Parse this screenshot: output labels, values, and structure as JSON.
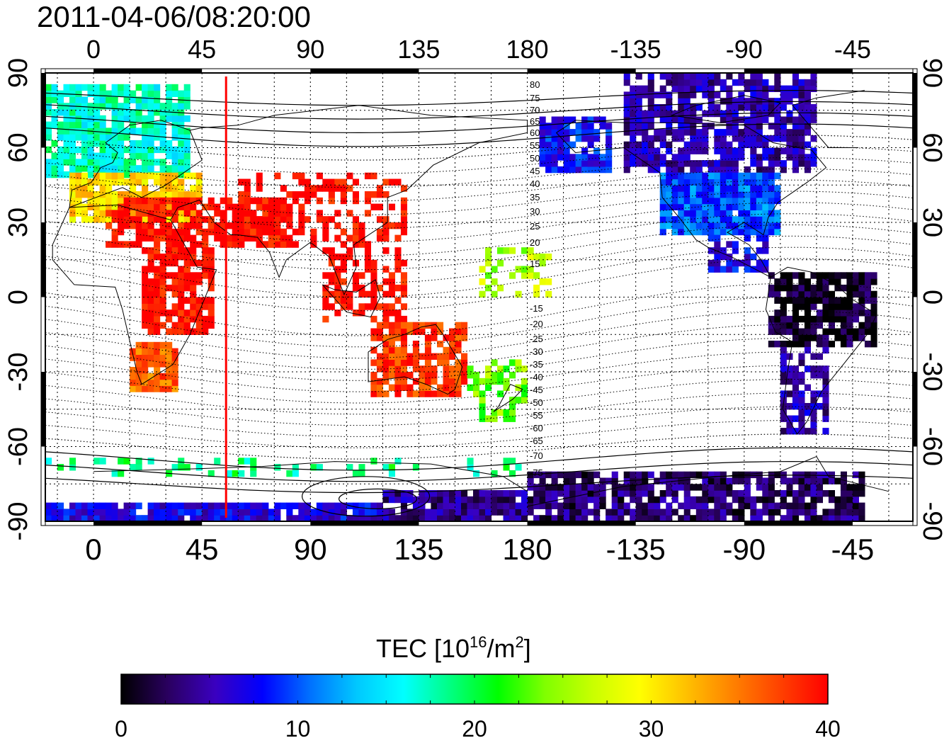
{
  "title": "2011-04-06/08:20:00",
  "x_tick_labels": [
    "0",
    "45",
    "90",
    "135",
    "180",
    "-135",
    "-90",
    "-45"
  ],
  "y_tick_labels": [
    "90",
    "60",
    "30",
    "0",
    "-30",
    "-60",
    "-90"
  ],
  "colorbar": {
    "label_main": "TEC  [10",
    "label_sup1": "16",
    "label_mid": "/m",
    "label_sup2": "2",
    "label_end": "]",
    "min": 0,
    "max": 40,
    "tick_labels": [
      "0",
      "10",
      "20",
      "30",
      "40"
    ],
    "colors": [
      "#000000",
      "#2a0060",
      "#3a00c0",
      "#0000ff",
      "#0070ff",
      "#00c8ff",
      "#00ffff",
      "#00ff80",
      "#00ff00",
      "#80ff00",
      "#c8ff00",
      "#ffff00",
      "#ffc000",
      "#ff8000",
      "#ff4000",
      "#ff0000"
    ]
  },
  "marker_line": {
    "longitude": 55,
    "color": "#ff0000"
  },
  "contour_labels_north": [
    "80",
    "75",
    "70",
    "65",
    "60",
    "55",
    "50",
    "45",
    "40",
    "35",
    "30",
    "25",
    "20",
    "15"
  ],
  "contour_labels_south": [
    "-15",
    "-20",
    "-25",
    "-30",
    "-35",
    "-40",
    "-45",
    "-50",
    "-55",
    "-60",
    "-65",
    "-70",
    "-75"
  ]
}
